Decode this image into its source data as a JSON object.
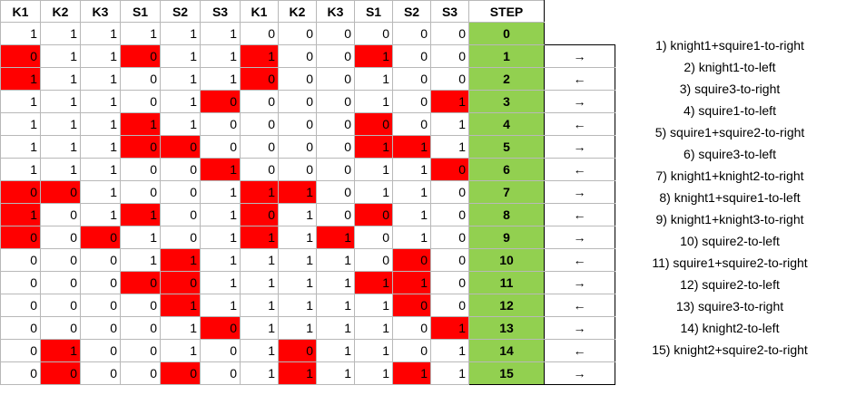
{
  "headers": [
    "K1",
    "K2",
    "K3",
    "S1",
    "S2",
    "S3",
    "K1",
    "K2",
    "K3",
    "S1",
    "S2",
    "S3",
    "STEP"
  ],
  "rows": [
    {
      "cells": [
        "1",
        "1",
        "1",
        "1",
        "1",
        "1",
        "0",
        "0",
        "0",
        "0",
        "0",
        "0"
      ],
      "red": [],
      "step": "0",
      "dir": ""
    },
    {
      "cells": [
        "0",
        "1",
        "1",
        "0",
        "1",
        "1",
        "1",
        "0",
        "0",
        "1",
        "0",
        "0"
      ],
      "red": [
        0,
        3,
        6,
        9
      ],
      "step": "1",
      "dir": "→"
    },
    {
      "cells": [
        "1",
        "1",
        "1",
        "0",
        "1",
        "1",
        "0",
        "0",
        "0",
        "1",
        "0",
        "0"
      ],
      "red": [
        0,
        6
      ],
      "step": "2",
      "dir": "←"
    },
    {
      "cells": [
        "1",
        "1",
        "1",
        "0",
        "1",
        "0",
        "0",
        "0",
        "0",
        "1",
        "0",
        "1"
      ],
      "red": [
        5,
        11
      ],
      "step": "3",
      "dir": "→"
    },
    {
      "cells": [
        "1",
        "1",
        "1",
        "1",
        "1",
        "0",
        "0",
        "0",
        "0",
        "0",
        "0",
        "1"
      ],
      "red": [
        3,
        9
      ],
      "step": "4",
      "dir": "←"
    },
    {
      "cells": [
        "1",
        "1",
        "1",
        "0",
        "0",
        "0",
        "0",
        "0",
        "0",
        "1",
        "1",
        "1"
      ],
      "red": [
        3,
        4,
        9,
        10
      ],
      "step": "5",
      "dir": "→"
    },
    {
      "cells": [
        "1",
        "1",
        "1",
        "0",
        "0",
        "1",
        "0",
        "0",
        "0",
        "1",
        "1",
        "0"
      ],
      "red": [
        5,
        11
      ],
      "step": "6",
      "dir": "←"
    },
    {
      "cells": [
        "0",
        "0",
        "1",
        "0",
        "0",
        "1",
        "1",
        "1",
        "0",
        "1",
        "1",
        "0"
      ],
      "red": [
        0,
        1,
        6,
        7
      ],
      "step": "7",
      "dir": "→"
    },
    {
      "cells": [
        "1",
        "0",
        "1",
        "1",
        "0",
        "1",
        "0",
        "1",
        "0",
        "0",
        "1",
        "0"
      ],
      "red": [
        0,
        3,
        6,
        9
      ],
      "step": "8",
      "dir": "←"
    },
    {
      "cells": [
        "0",
        "0",
        "0",
        "1",
        "0",
        "1",
        "1",
        "1",
        "1",
        "0",
        "1",
        "0"
      ],
      "red": [
        0,
        2,
        6,
        8
      ],
      "step": "9",
      "dir": "→"
    },
    {
      "cells": [
        "0",
        "0",
        "0",
        "1",
        "1",
        "1",
        "1",
        "1",
        "1",
        "0",
        "0",
        "0"
      ],
      "red": [
        4,
        10
      ],
      "step": "10",
      "dir": "←"
    },
    {
      "cells": [
        "0",
        "0",
        "0",
        "0",
        "0",
        "1",
        "1",
        "1",
        "1",
        "1",
        "1",
        "0"
      ],
      "red": [
        3,
        4,
        9,
        10
      ],
      "step": "11",
      "dir": "→"
    },
    {
      "cells": [
        "0",
        "0",
        "0",
        "0",
        "1",
        "1",
        "1",
        "1",
        "1",
        "1",
        "0",
        "0"
      ],
      "red": [
        4,
        10
      ],
      "step": "12",
      "dir": "←"
    },
    {
      "cells": [
        "0",
        "0",
        "0",
        "0",
        "1",
        "0",
        "1",
        "1",
        "1",
        "1",
        "0",
        "1"
      ],
      "red": [
        5,
        11
      ],
      "step": "13",
      "dir": "→"
    },
    {
      "cells": [
        "0",
        "1",
        "0",
        "0",
        "1",
        "0",
        "1",
        "0",
        "1",
        "1",
        "0",
        "1"
      ],
      "red": [
        1,
        7
      ],
      "step": "14",
      "dir": "←"
    },
    {
      "cells": [
        "0",
        "0",
        "0",
        "0",
        "0",
        "0",
        "1",
        "1",
        "1",
        "1",
        "1",
        "1"
      ],
      "red": [
        1,
        4,
        7,
        10
      ],
      "step": "15",
      "dir": "→"
    }
  ],
  "moves": [
    "1) knight1+squire1-to-right",
    "2) knight1-to-left",
    "3) squire3-to-right",
    "4) squire1-to-left",
    "5) squire1+squire2-to-right",
    "6) squire3-to-left",
    "7) knight1+knight2-to-right",
    "8) knight1+squire1-to-left",
    "9) knight1+knight3-to-right",
    "10) squire2-to-left",
    "11) squire1+squire2-to-right",
    "12) squire2-to-left",
    "13) squire3-to-right",
    "14) knight2-to-left",
    "15) knight2+squire2-to-right"
  ],
  "colors": {
    "highlight": "#ff0000",
    "step_column": "#92d050"
  }
}
